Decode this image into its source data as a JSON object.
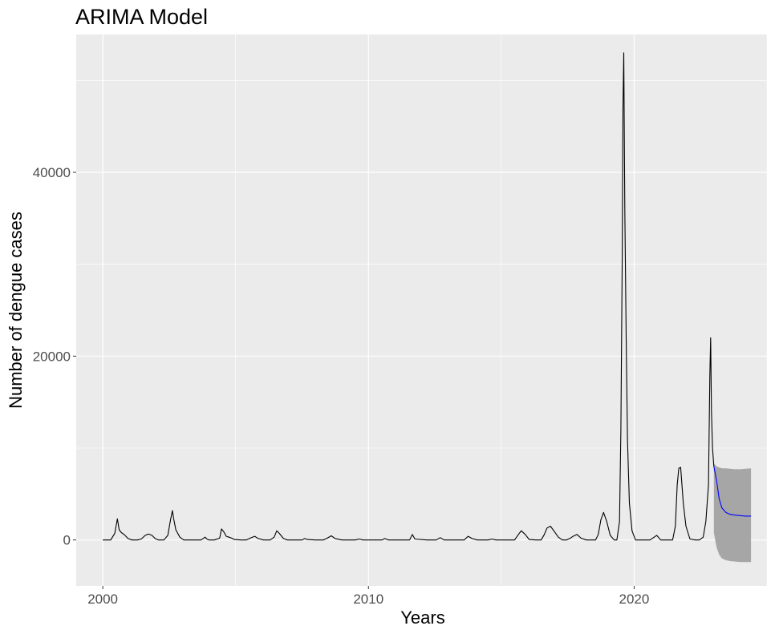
{
  "chart_data": {
    "type": "line",
    "title": "ARIMA Model",
    "xlabel": "Years",
    "ylabel": "Number of dengue cases",
    "xlim": [
      1999,
      2025
    ],
    "ylim": [
      -5000,
      55000
    ],
    "x_ticks": [
      2000,
      2010,
      2020
    ],
    "x_tick_labels": [
      "2000",
      "2010",
      "2020"
    ],
    "y_ticks": [
      0,
      20000,
      40000
    ],
    "y_tick_labels": [
      "0",
      "20000",
      "40000"
    ],
    "grid": true,
    "legend": "none",
    "colors": {
      "panel_background": "#ebebeb",
      "grid_line": "#ffffff",
      "observed": "#000000",
      "forecast": "#0000ff",
      "interval": "#a6a6a6"
    },
    "series": [
      {
        "kind": "observed",
        "x": [
          2000.0,
          2000.3,
          2000.45,
          2000.55,
          2000.62,
          2000.7,
          2000.8,
          2000.95,
          2001.1,
          2001.3,
          2001.45,
          2001.6,
          2001.72,
          2001.85,
          2001.97,
          2002.1,
          2002.3,
          2002.45,
          2002.55,
          2002.62,
          2002.67,
          2002.75,
          2002.9,
          2003.05,
          2003.3,
          2003.7,
          2003.85,
          2003.92,
          2004.0,
          2004.2,
          2004.4,
          2004.47,
          2004.55,
          2004.65,
          2004.75,
          2004.85,
          2004.95,
          2005.2,
          2005.4,
          2005.55,
          2005.72,
          2005.85,
          2006.05,
          2006.3,
          2006.45,
          2006.55,
          2006.65,
          2006.8,
          2006.95,
          2007.2,
          2007.5,
          2007.6,
          2007.7,
          2008.0,
          2008.3,
          2008.45,
          2008.6,
          2008.75,
          2009.0,
          2009.5,
          2009.65,
          2009.8,
          2010.2,
          2010.5,
          2010.62,
          2010.75,
          2011.2,
          2011.55,
          2011.65,
          2011.75,
          2012.2,
          2012.55,
          2012.7,
          2012.85,
          2013.3,
          2013.6,
          2013.75,
          2013.9,
          2014.1,
          2014.5,
          2014.65,
          2014.8,
          2015.2,
          2015.5,
          2015.62,
          2015.75,
          2015.9,
          2016.05,
          2016.3,
          2016.5,
          2016.62,
          2016.72,
          2016.85,
          2017.0,
          2017.15,
          2017.3,
          2017.45,
          2017.6,
          2017.7,
          2017.85,
          2018.0,
          2018.2,
          2018.4,
          2018.55,
          2018.65,
          2018.75,
          2018.85,
          2018.97,
          2019.1,
          2019.25,
          2019.35,
          2019.45,
          2019.5,
          2019.55,
          2019.58,
          2019.61,
          2019.65,
          2019.7,
          2019.75,
          2019.82,
          2019.92,
          2020.05,
          2020.2,
          2020.4,
          2020.6,
          2020.75,
          2020.85,
          2021.0,
          2021.3,
          2021.45,
          2021.55,
          2021.62,
          2021.68,
          2021.75,
          2021.85,
          2021.95,
          2022.1,
          2022.3,
          2022.45,
          2022.6,
          2022.7,
          2022.8,
          2022.85,
          2022.88,
          2022.91,
          2022.95,
          2023.0
        ],
        "y": [
          0,
          0,
          700,
          2300,
          1100,
          800,
          600,
          150,
          0,
          0,
          100,
          500,
          650,
          500,
          150,
          0,
          0,
          500,
          2200,
          3200,
          2300,
          1100,
          300,
          0,
          0,
          0,
          300,
          100,
          0,
          0,
          200,
          1200,
          900,
          400,
          300,
          200,
          50,
          0,
          0,
          200,
          400,
          150,
          0,
          0,
          300,
          1000,
          700,
          150,
          0,
          0,
          0,
          150,
          50,
          0,
          0,
          200,
          450,
          150,
          0,
          0,
          100,
          0,
          0,
          0,
          150,
          0,
          0,
          0,
          600,
          100,
          0,
          0,
          250,
          0,
          0,
          0,
          400,
          150,
          0,
          0,
          100,
          0,
          0,
          0,
          500,
          1000,
          600,
          50,
          0,
          0,
          600,
          1300,
          1500,
          900,
          300,
          0,
          0,
          200,
          400,
          600,
          200,
          0,
          0,
          0,
          600,
          2200,
          3000,
          2000,
          500,
          0,
          0,
          2000,
          12000,
          30000,
          47000,
          53000,
          36000,
          22000,
          11000,
          4000,
          1000,
          0,
          0,
          0,
          0,
          300,
          500,
          0,
          0,
          0,
          1500,
          6000,
          7800,
          7900,
          4000,
          1500,
          100,
          0,
          0,
          300,
          2000,
          6000,
          18000,
          22000,
          14000,
          10000,
          8000
        ]
      },
      {
        "kind": "forecast",
        "x": [
          2023.0,
          2023.1,
          2023.2,
          2023.3,
          2023.45,
          2023.6,
          2023.8,
          2024.0,
          2024.2,
          2024.4
        ],
        "y": [
          8000,
          6500,
          4500,
          3500,
          3000,
          2800,
          2700,
          2650,
          2600,
          2600
        ],
        "lower": [
          800,
          -800,
          -1600,
          -2000,
          -2200,
          -2300,
          -2350,
          -2400,
          -2400,
          -2400
        ],
        "upper": [
          8300,
          8000,
          7900,
          7800,
          7800,
          7750,
          7700,
          7700,
          7750,
          7800
        ]
      }
    ]
  }
}
